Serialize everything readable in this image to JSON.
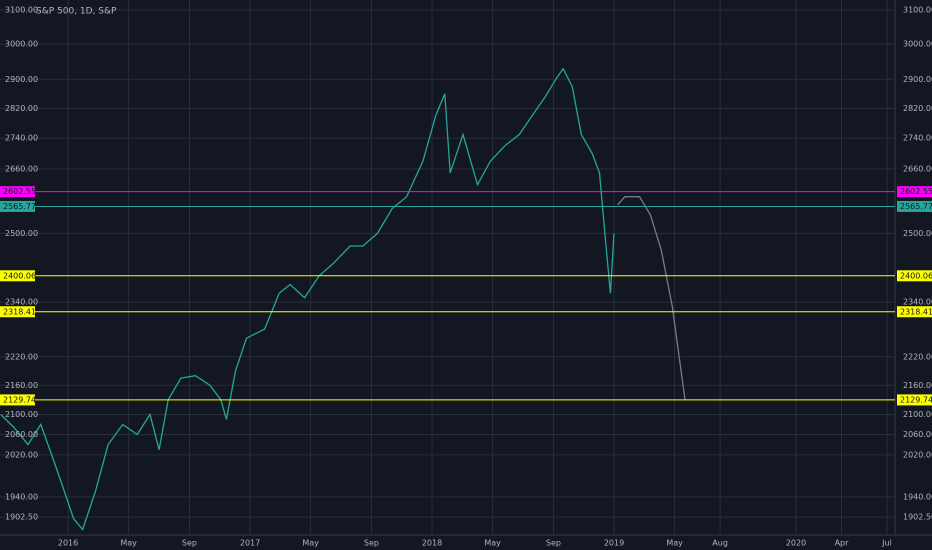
{
  "chart_data": {
    "type": "line",
    "title": "S&P 500, 1D, S&P",
    "log_scale": true,
    "grid": true,
    "ylim": [
      1870,
      3130
    ],
    "yticks": [
      {
        "value": 3100,
        "label": "3100.00"
      },
      {
        "value": 3000,
        "label": "3000.00"
      },
      {
        "value": 2900,
        "label": "2900.00"
      },
      {
        "value": 2820,
        "label": "2820.00"
      },
      {
        "value": 2740,
        "label": "2740.00"
      },
      {
        "value": 2660,
        "label": "2660.00"
      },
      {
        "value": 2500,
        "label": "2500.00"
      },
      {
        "value": 2340,
        "label": "2340.00"
      },
      {
        "value": 2220,
        "label": "2220.00"
      },
      {
        "value": 2160,
        "label": "2160.00"
      },
      {
        "value": 2100,
        "label": "2100.00"
      },
      {
        "value": 2060,
        "label": "2060.00"
      },
      {
        "value": 2020,
        "label": "2020.00"
      },
      {
        "value": 1940,
        "label": "1940.00"
      },
      {
        "value": 1902.5,
        "label": "1902.50"
      }
    ],
    "xlim": [
      2015.626,
      2020.544
    ],
    "xticks": [
      {
        "value": 2016,
        "label": "2016"
      },
      {
        "value": 2016.333,
        "label": "May"
      },
      {
        "value": 2016.667,
        "label": "Sep"
      },
      {
        "value": 2017,
        "label": "2017"
      },
      {
        "value": 2017.333,
        "label": "May"
      },
      {
        "value": 2017.667,
        "label": "Sep"
      },
      {
        "value": 2018,
        "label": "2018"
      },
      {
        "value": 2018.333,
        "label": "May"
      },
      {
        "value": 2018.667,
        "label": "Sep"
      },
      {
        "value": 2019,
        "label": "2019"
      },
      {
        "value": 2019.333,
        "label": "May"
      },
      {
        "value": 2019.583,
        "label": "Aug"
      },
      {
        "value": 2020,
        "label": "2020"
      },
      {
        "value": 2020.25,
        "label": "Apr"
      },
      {
        "value": 2020.5,
        "label": "Jul"
      }
    ],
    "series": [
      {
        "color": "#26a69a",
        "x": [
          2015.63,
          2015.7,
          2015.78,
          2015.85,
          2015.92,
          2015.98,
          2016.03,
          2016.08,
          2016.15,
          2016.22,
          2016.3,
          2016.38,
          2016.45,
          2016.5,
          2016.55,
          2016.62,
          2016.7,
          2016.78,
          2016.84,
          2016.87,
          2016.92,
          2016.98,
          2017.08,
          2017.16,
          2017.22,
          2017.3,
          2017.38,
          2017.46,
          2017.55,
          2017.62,
          2017.7,
          2017.78,
          2017.86,
          2017.95,
          2018.02,
          2018.07,
          2018.1,
          2018.17,
          2018.25,
          2018.32,
          2018.4,
          2018.48,
          2018.55,
          2018.62,
          2018.68,
          2018.72,
          2018.77,
          2018.82,
          2018.88,
          2018.92,
          2018.95,
          2018.98,
          2019.0
        ],
        "values": [
          2100,
          2075,
          2040,
          2080,
          2010,
          1950,
          1900,
          1880,
          1950,
          2040,
          2080,
          2060,
          2100,
          2030,
          2130,
          2175,
          2180,
          2160,
          2130,
          2090,
          2190,
          2260,
          2280,
          2360,
          2380,
          2350,
          2400,
          2430,
          2470,
          2470,
          2500,
          2560,
          2590,
          2680,
          2800,
          2860,
          2650,
          2750,
          2620,
          2680,
          2720,
          2750,
          2800,
          2850,
          2900,
          2930,
          2880,
          2750,
          2700,
          2650,
          2500,
          2360,
          2500
        ]
      },
      {
        "color": "#787b86",
        "x": [
          2019.02,
          2019.06,
          2019.14,
          2019.2,
          2019.26,
          2019.32,
          2019.39
        ],
        "values": [
          2570,
          2590,
          2590,
          2545,
          2460,
          2330,
          2130
        ]
      }
    ],
    "levels": [
      {
        "value": 2602.55,
        "color": "#ff00ff"
      },
      {
        "value": 2565.77,
        "color": "#26a69a"
      },
      {
        "value": 2400.06,
        "color": "#ffff00"
      },
      {
        "value": 2318.41,
        "color": "#ffff00"
      },
      {
        "value": 2129.74,
        "color": "#ffff00"
      }
    ]
  }
}
